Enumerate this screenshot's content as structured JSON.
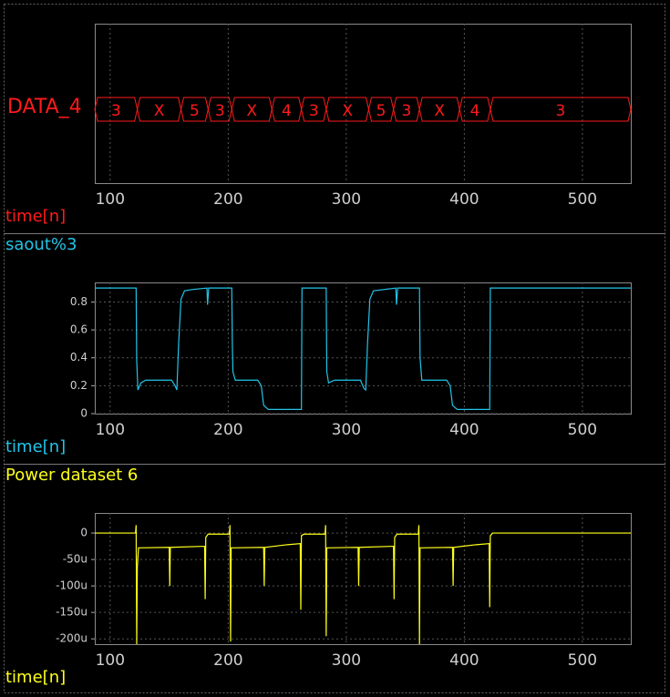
{
  "chart_data": [
    {
      "type": "bus",
      "ylabel": "DATA_4",
      "xlabel": "time[n]",
      "color": "#ff1a1a",
      "x": [
        87,
        123,
        160,
        183,
        203,
        237,
        262,
        283,
        319,
        340,
        362,
        396,
        422
      ],
      "values": [
        "3",
        "X",
        "5",
        "3",
        "X",
        "4",
        "3",
        "X",
        "5",
        "3",
        "X",
        "4",
        "3"
      ],
      "xlim": [
        87,
        541
      ],
      "xticks": [
        100,
        200,
        300,
        400,
        500
      ],
      "grid": true
    },
    {
      "type": "line",
      "title": "saout%3",
      "xlabel": "time[n]",
      "color": "#22c4e8",
      "x": [
        87,
        122,
        122.5,
        123.5,
        126,
        130,
        152,
        155,
        156.5,
        158,
        160,
        163,
        170,
        182,
        182.5,
        183.5,
        203,
        203.5,
        204,
        206,
        225,
        228,
        230,
        234,
        262,
        262.5,
        283,
        283.5,
        285,
        290,
        312,
        315,
        316.5,
        318,
        320,
        323,
        342,
        342.5,
        343.5,
        362,
        362.5,
        364,
        385,
        388,
        390,
        394,
        421.5,
        422,
        541
      ],
      "values": [
        0.9,
        0.9,
        0.38,
        0.17,
        0.22,
        0.24,
        0.24,
        0.2,
        0.17,
        0.5,
        0.82,
        0.88,
        0.89,
        0.9,
        0.78,
        0.9,
        0.9,
        0.5,
        0.3,
        0.24,
        0.24,
        0.2,
        0.06,
        0.03,
        0.03,
        0.9,
        0.9,
        0.3,
        0.22,
        0.24,
        0.24,
        0.18,
        0.17,
        0.5,
        0.82,
        0.88,
        0.9,
        0.78,
        0.9,
        0.9,
        0.4,
        0.24,
        0.24,
        0.2,
        0.06,
        0.03,
        0.03,
        0.9,
        0.9
      ],
      "xlim": [
        87,
        541
      ],
      "xticks": [
        100,
        200,
        300,
        400,
        500
      ],
      "ylim": [
        0,
        0.94
      ],
      "yticks": [
        0,
        0.2,
        0.4,
        0.6,
        0.8
      ],
      "grid": true
    },
    {
      "type": "line",
      "title": "Power dataset 6",
      "xlabel": "time[n]",
      "color": "#ffff1a",
      "x": [
        87,
        121.5,
        122,
        122.5,
        123,
        124,
        150,
        150.5,
        151,
        180,
        180.5,
        181,
        183,
        201,
        201.5,
        202,
        202.5,
        230,
        230.5,
        231,
        250,
        261,
        261.5,
        262,
        264,
        282,
        282.5,
        283,
        283.5,
        310,
        310.5,
        311,
        340,
        340.5,
        341,
        343,
        361,
        361.5,
        362,
        362.5,
        390,
        390.5,
        391,
        410,
        421,
        421.5,
        422,
        424,
        541
      ],
      "values": [
        0,
        0,
        15,
        -210,
        -65,
        -28,
        -27,
        -100,
        -27,
        -25,
        -125,
        -8,
        -2,
        -2,
        15,
        -205,
        -28,
        -27,
        -100,
        -27,
        -22,
        -20,
        -145,
        -5,
        -2,
        -2,
        15,
        -195,
        -28,
        -27,
        -100,
        -27,
        -25,
        -125,
        -8,
        -2,
        -2,
        15,
        -210,
        -28,
        -27,
        -100,
        -27,
        -22,
        -20,
        -140,
        -5,
        0,
        0
      ],
      "xlim": [
        87,
        541
      ],
      "xticks": [
        100,
        200,
        300,
        400,
        500
      ],
      "ylim": [
        -210,
        38
      ],
      "yticks": [
        0,
        {
          "value": -50,
          "label": "-50u"
        },
        {
          "value": -100,
          "label": "-100u"
        },
        {
          "value": -150,
          "label": "-150u"
        },
        {
          "value": -200,
          "label": "-200u"
        }
      ],
      "grid": true
    }
  ]
}
